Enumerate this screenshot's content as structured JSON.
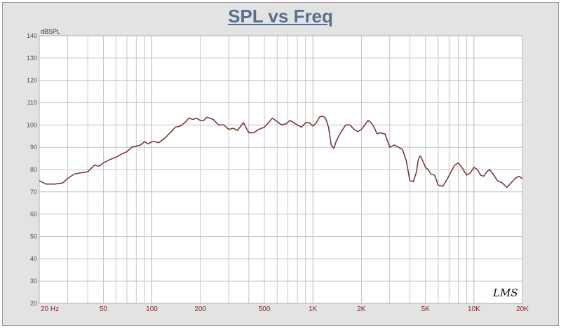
{
  "chart_data": {
    "type": "line",
    "title": "SPL vs Freq",
    "ylabel": "dBSPL",
    "xscale": "log",
    "xlim": [
      20,
      20000
    ],
    "ylim": [
      20,
      140
    ],
    "y_ticks": [
      20,
      30,
      40,
      50,
      60,
      70,
      80,
      90,
      100,
      110,
      120,
      130,
      140
    ],
    "x_ticks": [
      {
        "value": 20,
        "label": "20  Hz"
      },
      {
        "value": 50,
        "label": "50"
      },
      {
        "value": 100,
        "label": "100"
      },
      {
        "value": 200,
        "label": "200"
      },
      {
        "value": 500,
        "label": "500"
      },
      {
        "value": 1000,
        "label": "1K"
      },
      {
        "value": 2000,
        "label": "2K"
      },
      {
        "value": 5000,
        "label": "5K"
      },
      {
        "value": 10000,
        "label": "10K"
      },
      {
        "value": 20000,
        "label": "20K"
      }
    ],
    "grid": true,
    "colors": {
      "line": "#7b3a3a",
      "grid": "#b9b9b9",
      "background": "#ffffff",
      "frame": "#e3e3e3"
    },
    "series": [
      {
        "x": [
          20,
          22,
          25,
          28,
          30,
          33,
          36,
          40,
          44,
          47,
          50,
          55,
          60,
          65,
          70,
          75,
          80,
          85,
          90,
          95,
          100,
          105,
          110,
          120,
          130,
          140,
          150,
          160,
          170,
          180,
          190,
          200,
          210,
          220,
          240,
          260,
          280,
          300,
          320,
          340,
          370,
          400,
          430,
          460,
          500,
          530,
          560,
          600,
          640,
          680,
          720,
          760,
          800,
          850,
          900,
          950,
          1000,
          1050,
          1100,
          1150,
          1200,
          1250,
          1300,
          1350,
          1400,
          1500,
          1600,
          1700,
          1800,
          1900,
          2000,
          2100,
          2200,
          2300,
          2400,
          2500,
          2600,
          2800,
          3000,
          3200,
          3400,
          3600,
          3800,
          4000,
          4200,
          4400,
          4500,
          4600,
          4700,
          4800,
          5000,
          5200,
          5400,
          5700,
          6000,
          6400,
          6800,
          7200,
          7600,
          8000,
          8500,
          9000,
          9500,
          10000,
          10500,
          11000,
          11500,
          12000,
          12500,
          13000,
          14000,
          15000,
          16000,
          17000,
          18000,
          19000,
          20000
        ],
        "y": [
          75,
          73.5,
          73.5,
          74,
          76,
          78,
          78.5,
          79,
          82,
          81.5,
          83,
          84.5,
          85.5,
          87,
          88,
          90,
          90.5,
          91,
          92.5,
          91.5,
          92.5,
          92.5,
          92,
          94,
          96.5,
          99,
          99.5,
          101,
          103,
          102.5,
          103,
          102,
          102,
          103.5,
          102.5,
          100,
          100,
          98,
          98.5,
          97.5,
          101,
          96.5,
          96.5,
          98,
          99,
          101,
          103,
          101.5,
          100,
          100.5,
          102,
          101,
          100,
          99,
          101,
          101,
          99.5,
          101,
          103.5,
          104,
          103,
          99,
          91,
          89.5,
          93,
          97,
          100,
          100,
          98,
          97,
          98,
          100,
          102,
          101,
          99,
          96,
          96.5,
          96,
          90,
          91,
          90,
          89,
          84,
          75,
          74.5,
          79,
          84,
          86,
          85.5,
          84,
          81,
          80,
          78,
          77.5,
          73,
          72.5,
          75.5,
          79,
          82,
          83,
          80.5,
          77.5,
          78.5,
          81,
          80,
          77.5,
          77,
          79,
          80,
          78.5,
          75,
          74,
          72,
          74,
          76,
          77,
          76
        ]
      }
    ]
  },
  "logo_text": "LMS"
}
